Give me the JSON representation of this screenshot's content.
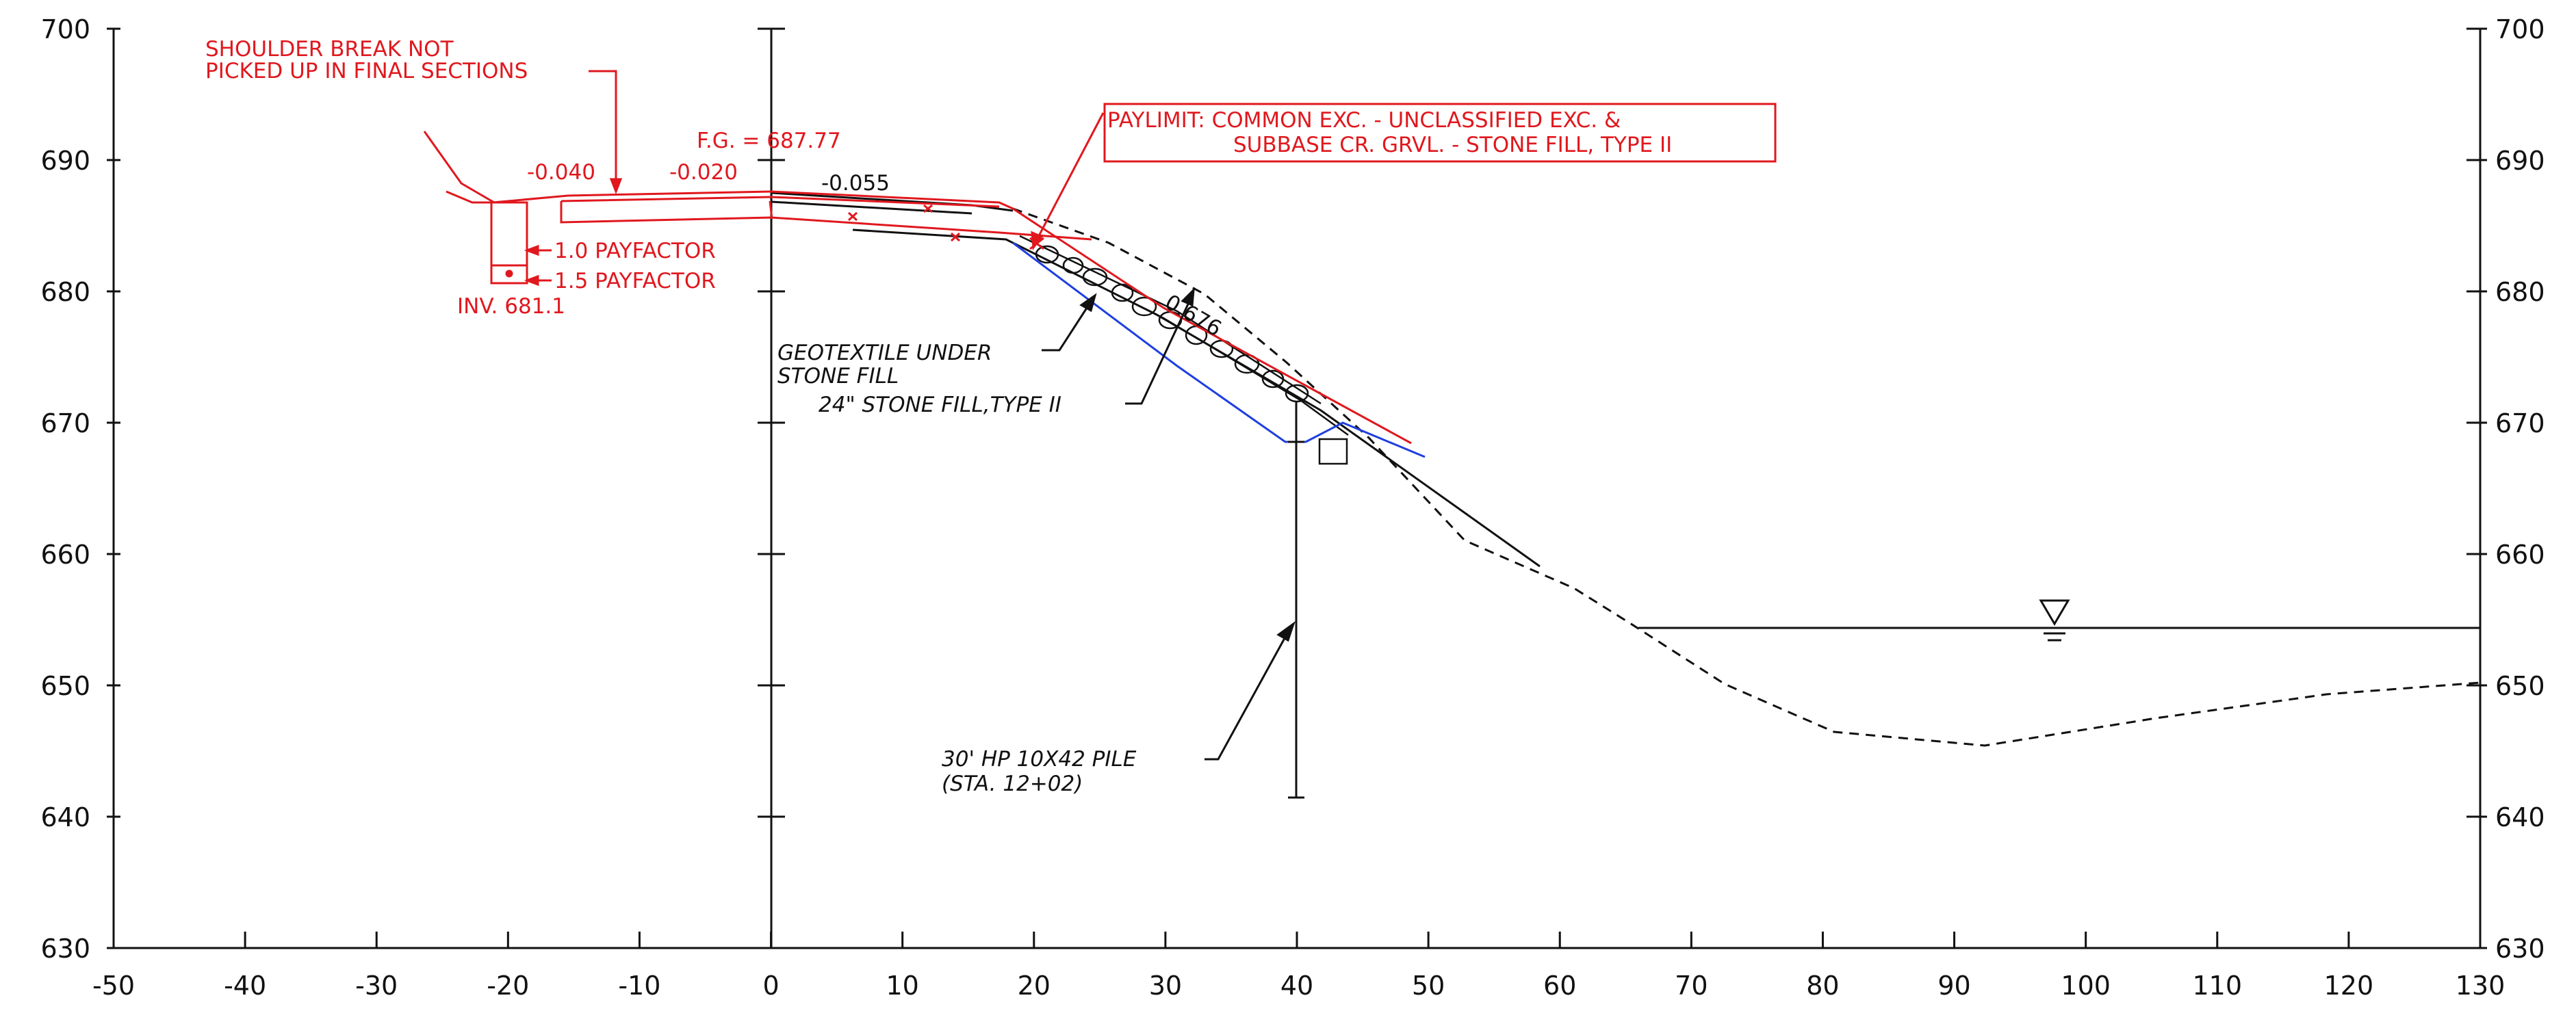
{
  "axes": {
    "x_ticks": [
      "-50",
      "-40",
      "-30",
      "-20",
      "-10",
      "0",
      "10",
      "20",
      "30",
      "40",
      "50",
      "60",
      "70",
      "80",
      "90",
      "100",
      "110",
      "120",
      "130"
    ],
    "y_ticks_left": [
      "700",
      "690",
      "680",
      "670",
      "660",
      "650",
      "640",
      "630"
    ],
    "y_ticks_right": [
      "700",
      "690",
      "680",
      "670",
      "660",
      "650",
      "640",
      "630"
    ],
    "x_range": [
      -50,
      130
    ],
    "y_range": [
      630,
      700
    ]
  },
  "annotations": {
    "shoulder_note": [
      "SHOULDER BREAK NOT",
      "PICKED UP IN FINAL SECTIONS"
    ],
    "fg_label": "F.G. = 687.77",
    "slope_1": "-0.040",
    "slope_2": "-0.020",
    "slope_3": "-0.055",
    "paylimit": [
      "PAYLIMIT: COMMON EXC. - UNCLASSIFIED EXC. &",
      "SUBBASE CR. GRVL. - STONE FILL, TYPE II"
    ],
    "payfactor_1": "1.0 PAYFACTOR",
    "payfactor_2": "1.5 PAYFACTOR",
    "invert": "INV. 681.1",
    "slope_ratio": "0.676",
    "geotextile": [
      "GEOTEXTILE UNDER",
      "STONE FILL"
    ],
    "stone_fill": "24\" STONE FILL,TYPE II",
    "pile": [
      "30' HP 10X42 PILE",
      "(STA. 12+02)"
    ]
  },
  "colors": {
    "proposed": "#e0181e",
    "existing": "#111111",
    "geotextile": "#1f3fe0"
  },
  "icons": [
    "water-surface-icon"
  ]
}
